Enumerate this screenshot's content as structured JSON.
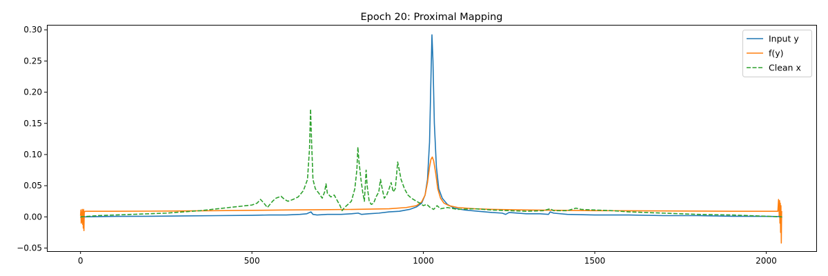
{
  "chart_data": {
    "type": "line",
    "title": "Epoch 20: Proximal Mapping",
    "xlabel": "",
    "ylabel": "",
    "xlim": [
      -98,
      2146
    ],
    "ylim": [
      -0.055,
      0.308
    ],
    "xticks": [
      0,
      500,
      1000,
      1500,
      2000
    ],
    "xtick_labels": [
      "0",
      "500",
      "1000",
      "1500",
      "2000"
    ],
    "yticks": [
      -0.05,
      0.0,
      0.05,
      0.1,
      0.15,
      0.2,
      0.25,
      0.3
    ],
    "ytick_labels": [
      "−0.05",
      "0.00",
      "0.05",
      "0.10",
      "0.15",
      "0.20",
      "0.25",
      "0.30"
    ],
    "grid": false,
    "legend": {
      "position": "top-right"
    },
    "series": [
      {
        "name": "Input y",
        "color": "#1f77b4",
        "style": "solid",
        "points": [
          [
            0,
            0.0
          ],
          [
            3,
            -0.003
          ],
          [
            6,
            0.0
          ],
          [
            9,
            0.002
          ],
          [
            12,
            0.0
          ],
          [
            100,
            0.0008
          ],
          [
            200,
            0.001
          ],
          [
            300,
            0.0015
          ],
          [
            400,
            0.002
          ],
          [
            500,
            0.0025
          ],
          [
            550,
            0.003
          ],
          [
            600,
            0.003
          ],
          [
            640,
            0.004
          ],
          [
            660,
            0.005
          ],
          [
            672,
            0.008
          ],
          [
            678,
            0.004
          ],
          [
            690,
            0.003
          ],
          [
            720,
            0.004
          ],
          [
            760,
            0.004
          ],
          [
            790,
            0.005
          ],
          [
            810,
            0.006
          ],
          [
            820,
            0.004
          ],
          [
            840,
            0.005
          ],
          [
            870,
            0.006
          ],
          [
            900,
            0.008
          ],
          [
            930,
            0.009
          ],
          [
            960,
            0.012
          ],
          [
            980,
            0.016
          ],
          [
            995,
            0.022
          ],
          [
            1005,
            0.035
          ],
          [
            1012,
            0.06
          ],
          [
            1018,
            0.12
          ],
          [
            1022,
            0.22
          ],
          [
            1025,
            0.292
          ],
          [
            1028,
            0.25
          ],
          [
            1032,
            0.15
          ],
          [
            1038,
            0.08
          ],
          [
            1045,
            0.045
          ],
          [
            1055,
            0.03
          ],
          [
            1070,
            0.02
          ],
          [
            1090,
            0.014
          ],
          [
            1120,
            0.011
          ],
          [
            1160,
            0.009
          ],
          [
            1200,
            0.007
          ],
          [
            1230,
            0.006
          ],
          [
            1240,
            0.004
          ],
          [
            1250,
            0.007
          ],
          [
            1300,
            0.005
          ],
          [
            1340,
            0.005
          ],
          [
            1365,
            0.004
          ],
          [
            1370,
            0.008
          ],
          [
            1380,
            0.006
          ],
          [
            1420,
            0.004
          ],
          [
            1500,
            0.003
          ],
          [
            1600,
            0.003
          ],
          [
            1700,
            0.002
          ],
          [
            1800,
            0.002
          ],
          [
            1900,
            0.001
          ],
          [
            2000,
            0.0008
          ],
          [
            2036,
            0.0005
          ],
          [
            2040,
            0.003
          ],
          [
            2043,
            -0.003
          ],
          [
            2046,
            0.0
          ]
        ]
      },
      {
        "name": "f(y)",
        "color": "#ff7f0e",
        "style": "solid",
        "points": [
          [
            0,
            0.002
          ],
          [
            1,
            0.011
          ],
          [
            2,
            -0.01
          ],
          [
            3,
            0.008
          ],
          [
            4,
            -0.008
          ],
          [
            5,
            0.012
          ],
          [
            6,
            -0.012
          ],
          [
            7,
            0.01
          ],
          [
            8,
            -0.018
          ],
          [
            9,
            0.012
          ],
          [
            10,
            -0.022
          ],
          [
            11,
            0.009
          ],
          [
            12,
            0.008
          ],
          [
            14,
            0.009
          ],
          [
            100,
            0.009
          ],
          [
            200,
            0.0092
          ],
          [
            300,
            0.0095
          ],
          [
            400,
            0.01
          ],
          [
            500,
            0.0105
          ],
          [
            600,
            0.011
          ],
          [
            700,
            0.0115
          ],
          [
            800,
            0.012
          ],
          [
            900,
            0.013
          ],
          [
            950,
            0.015
          ],
          [
            980,
            0.018
          ],
          [
            995,
            0.024
          ],
          [
            1005,
            0.035
          ],
          [
            1012,
            0.055
          ],
          [
            1018,
            0.08
          ],
          [
            1022,
            0.092
          ],
          [
            1026,
            0.096
          ],
          [
            1030,
            0.09
          ],
          [
            1036,
            0.07
          ],
          [
            1042,
            0.045
          ],
          [
            1050,
            0.03
          ],
          [
            1060,
            0.022
          ],
          [
            1075,
            0.018
          ],
          [
            1100,
            0.015
          ],
          [
            1150,
            0.013
          ],
          [
            1200,
            0.012
          ],
          [
            1300,
            0.011
          ],
          [
            1400,
            0.0105
          ],
          [
            1500,
            0.01
          ],
          [
            1600,
            0.0098
          ],
          [
            1700,
            0.0095
          ],
          [
            1800,
            0.0093
          ],
          [
            1900,
            0.009
          ],
          [
            2000,
            0.009
          ],
          [
            2034,
            0.009
          ],
          [
            2036,
            0.028
          ],
          [
            2038,
            0.002
          ],
          [
            2039,
            0.026
          ],
          [
            2040,
            -0.01
          ],
          [
            2041,
            0.022
          ],
          [
            2042,
            -0.025
          ],
          [
            2043,
            0.018
          ],
          [
            2044,
            -0.042
          ],
          [
            2045,
            0.008
          ],
          [
            2046,
            0.009
          ]
        ]
      },
      {
        "name": "Clean x",
        "color": "#2ca02c",
        "style": "dashed",
        "points": [
          [
            0,
            0.0
          ],
          [
            50,
            0.002
          ],
          [
            100,
            0.003
          ],
          [
            150,
            0.004
          ],
          [
            200,
            0.005
          ],
          [
            250,
            0.006
          ],
          [
            300,
            0.008
          ],
          [
            350,
            0.01
          ],
          [
            400,
            0.013
          ],
          [
            450,
            0.016
          ],
          [
            500,
            0.019
          ],
          [
            515,
            0.022
          ],
          [
            525,
            0.028
          ],
          [
            535,
            0.022
          ],
          [
            545,
            0.015
          ],
          [
            560,
            0.025
          ],
          [
            570,
            0.03
          ],
          [
            585,
            0.033
          ],
          [
            595,
            0.028
          ],
          [
            605,
            0.025
          ],
          [
            620,
            0.028
          ],
          [
            635,
            0.032
          ],
          [
            650,
            0.042
          ],
          [
            662,
            0.06
          ],
          [
            668,
            0.11
          ],
          [
            671,
            0.173
          ],
          [
            674,
            0.12
          ],
          [
            678,
            0.06
          ],
          [
            685,
            0.045
          ],
          [
            695,
            0.038
          ],
          [
            705,
            0.03
          ],
          [
            712,
            0.04
          ],
          [
            716,
            0.053
          ],
          [
            720,
            0.038
          ],
          [
            730,
            0.032
          ],
          [
            740,
            0.035
          ],
          [
            750,
            0.025
          ],
          [
            757,
            0.018
          ],
          [
            763,
            0.01
          ],
          [
            770,
            0.015
          ],
          [
            780,
            0.02
          ],
          [
            790,
            0.025
          ],
          [
            800,
            0.045
          ],
          [
            806,
            0.075
          ],
          [
            809,
            0.112
          ],
          [
            812,
            0.09
          ],
          [
            818,
            0.06
          ],
          [
            823,
            0.04
          ],
          [
            828,
            0.025
          ],
          [
            833,
            0.075
          ],
          [
            836,
            0.05
          ],
          [
            842,
            0.025
          ],
          [
            848,
            0.02
          ],
          [
            855,
            0.022
          ],
          [
            862,
            0.032
          ],
          [
            870,
            0.04
          ],
          [
            875,
            0.06
          ],
          [
            880,
            0.045
          ],
          [
            886,
            0.03
          ],
          [
            893,
            0.035
          ],
          [
            900,
            0.045
          ],
          [
            906,
            0.055
          ],
          [
            912,
            0.04
          ],
          [
            918,
            0.045
          ],
          [
            922,
            0.068
          ],
          [
            925,
            0.088
          ],
          [
            928,
            0.08
          ],
          [
            935,
            0.06
          ],
          [
            945,
            0.045
          ],
          [
            955,
            0.035
          ],
          [
            965,
            0.03
          ],
          [
            980,
            0.025
          ],
          [
            990,
            0.022
          ],
          [
            1000,
            0.018
          ],
          [
            1010,
            0.02
          ],
          [
            1020,
            0.015
          ],
          [
            1030,
            0.012
          ],
          [
            1040,
            0.018
          ],
          [
            1050,
            0.013
          ],
          [
            1070,
            0.015
          ],
          [
            1100,
            0.012
          ],
          [
            1150,
            0.013
          ],
          [
            1200,
            0.011
          ],
          [
            1250,
            0.01
          ],
          [
            1300,
            0.009
          ],
          [
            1350,
            0.01
          ],
          [
            1370,
            0.013
          ],
          [
            1380,
            0.01
          ],
          [
            1420,
            0.01
          ],
          [
            1445,
            0.014
          ],
          [
            1460,
            0.012
          ],
          [
            1500,
            0.011
          ],
          [
            1550,
            0.01
          ],
          [
            1600,
            0.008
          ],
          [
            1650,
            0.007
          ],
          [
            1700,
            0.006
          ],
          [
            1800,
            0.004
          ],
          [
            1900,
            0.003
          ],
          [
            2000,
            0.001
          ],
          [
            2046,
            0.0
          ]
        ]
      }
    ]
  }
}
